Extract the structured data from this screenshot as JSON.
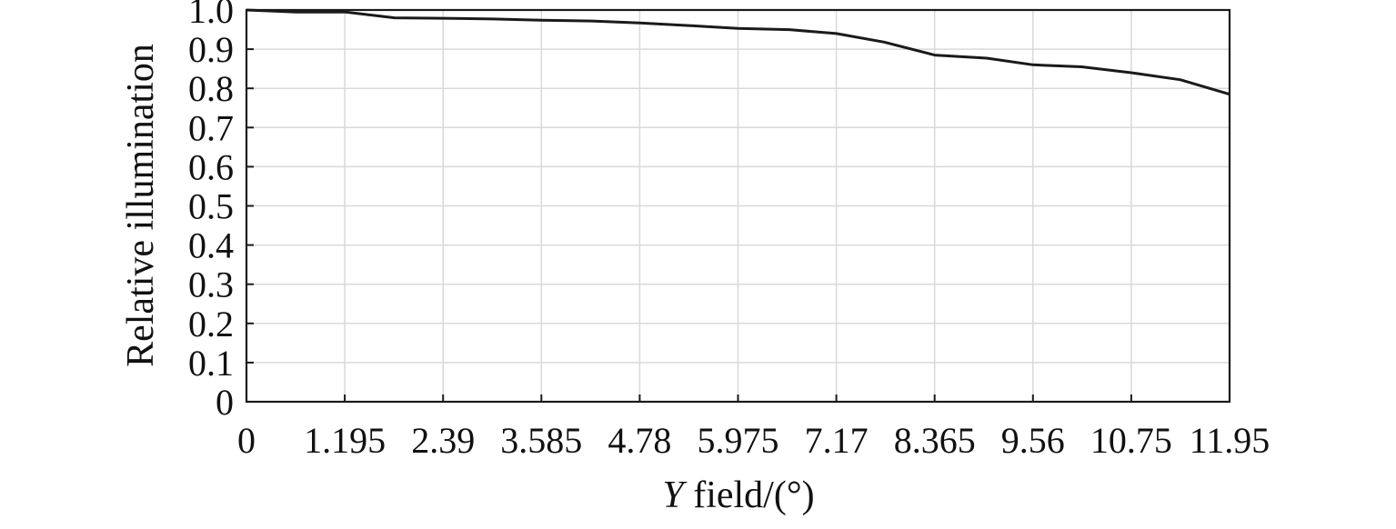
{
  "chart_data": {
    "type": "line",
    "title": "",
    "xlabel_prefix": "Y",
    "xlabel_suffix": " field/(°)",
    "ylabel": "Relative illumination",
    "xlim": [
      0,
      11.95
    ],
    "ylim": [
      0,
      1.0
    ],
    "x_ticks": [
      0,
      1.195,
      2.39,
      3.585,
      4.78,
      5.975,
      7.17,
      8.365,
      9.56,
      10.755,
      11.95
    ],
    "x_tick_labels": [
      "0",
      "1.195",
      "2.39",
      "3.585",
      "4.78",
      "5.975",
      "7.17",
      "8.365",
      "9.56",
      "10.75",
      "11.95"
    ],
    "y_ticks": [
      0,
      0.1,
      0.2,
      0.3,
      0.4,
      0.5,
      0.6,
      0.7,
      0.8,
      0.9,
      1.0
    ],
    "y_tick_labels": [
      "0",
      "0.1",
      "0.2",
      "0.3",
      "0.4",
      "0.5",
      "0.6",
      "0.7",
      "0.8",
      "0.9",
      "1.0"
    ],
    "grid": true,
    "line_color": "#1a1a1a",
    "grid_color": "#d9d9d9",
    "series": [
      {
        "x": [
          0,
          0.6,
          1.195,
          1.8,
          2.39,
          3.0,
          3.585,
          4.2,
          4.78,
          5.4,
          5.975,
          6.6,
          7.17,
          7.75,
          8.365,
          9.0,
          9.56,
          10.15,
          10.755,
          11.35,
          11.95
        ],
        "y": [
          1.0,
          0.995,
          0.995,
          0.98,
          0.979,
          0.977,
          0.974,
          0.972,
          0.967,
          0.96,
          0.953,
          0.95,
          0.94,
          0.918,
          0.885,
          0.877,
          0.86,
          0.855,
          0.84,
          0.822,
          0.785
        ]
      }
    ]
  }
}
